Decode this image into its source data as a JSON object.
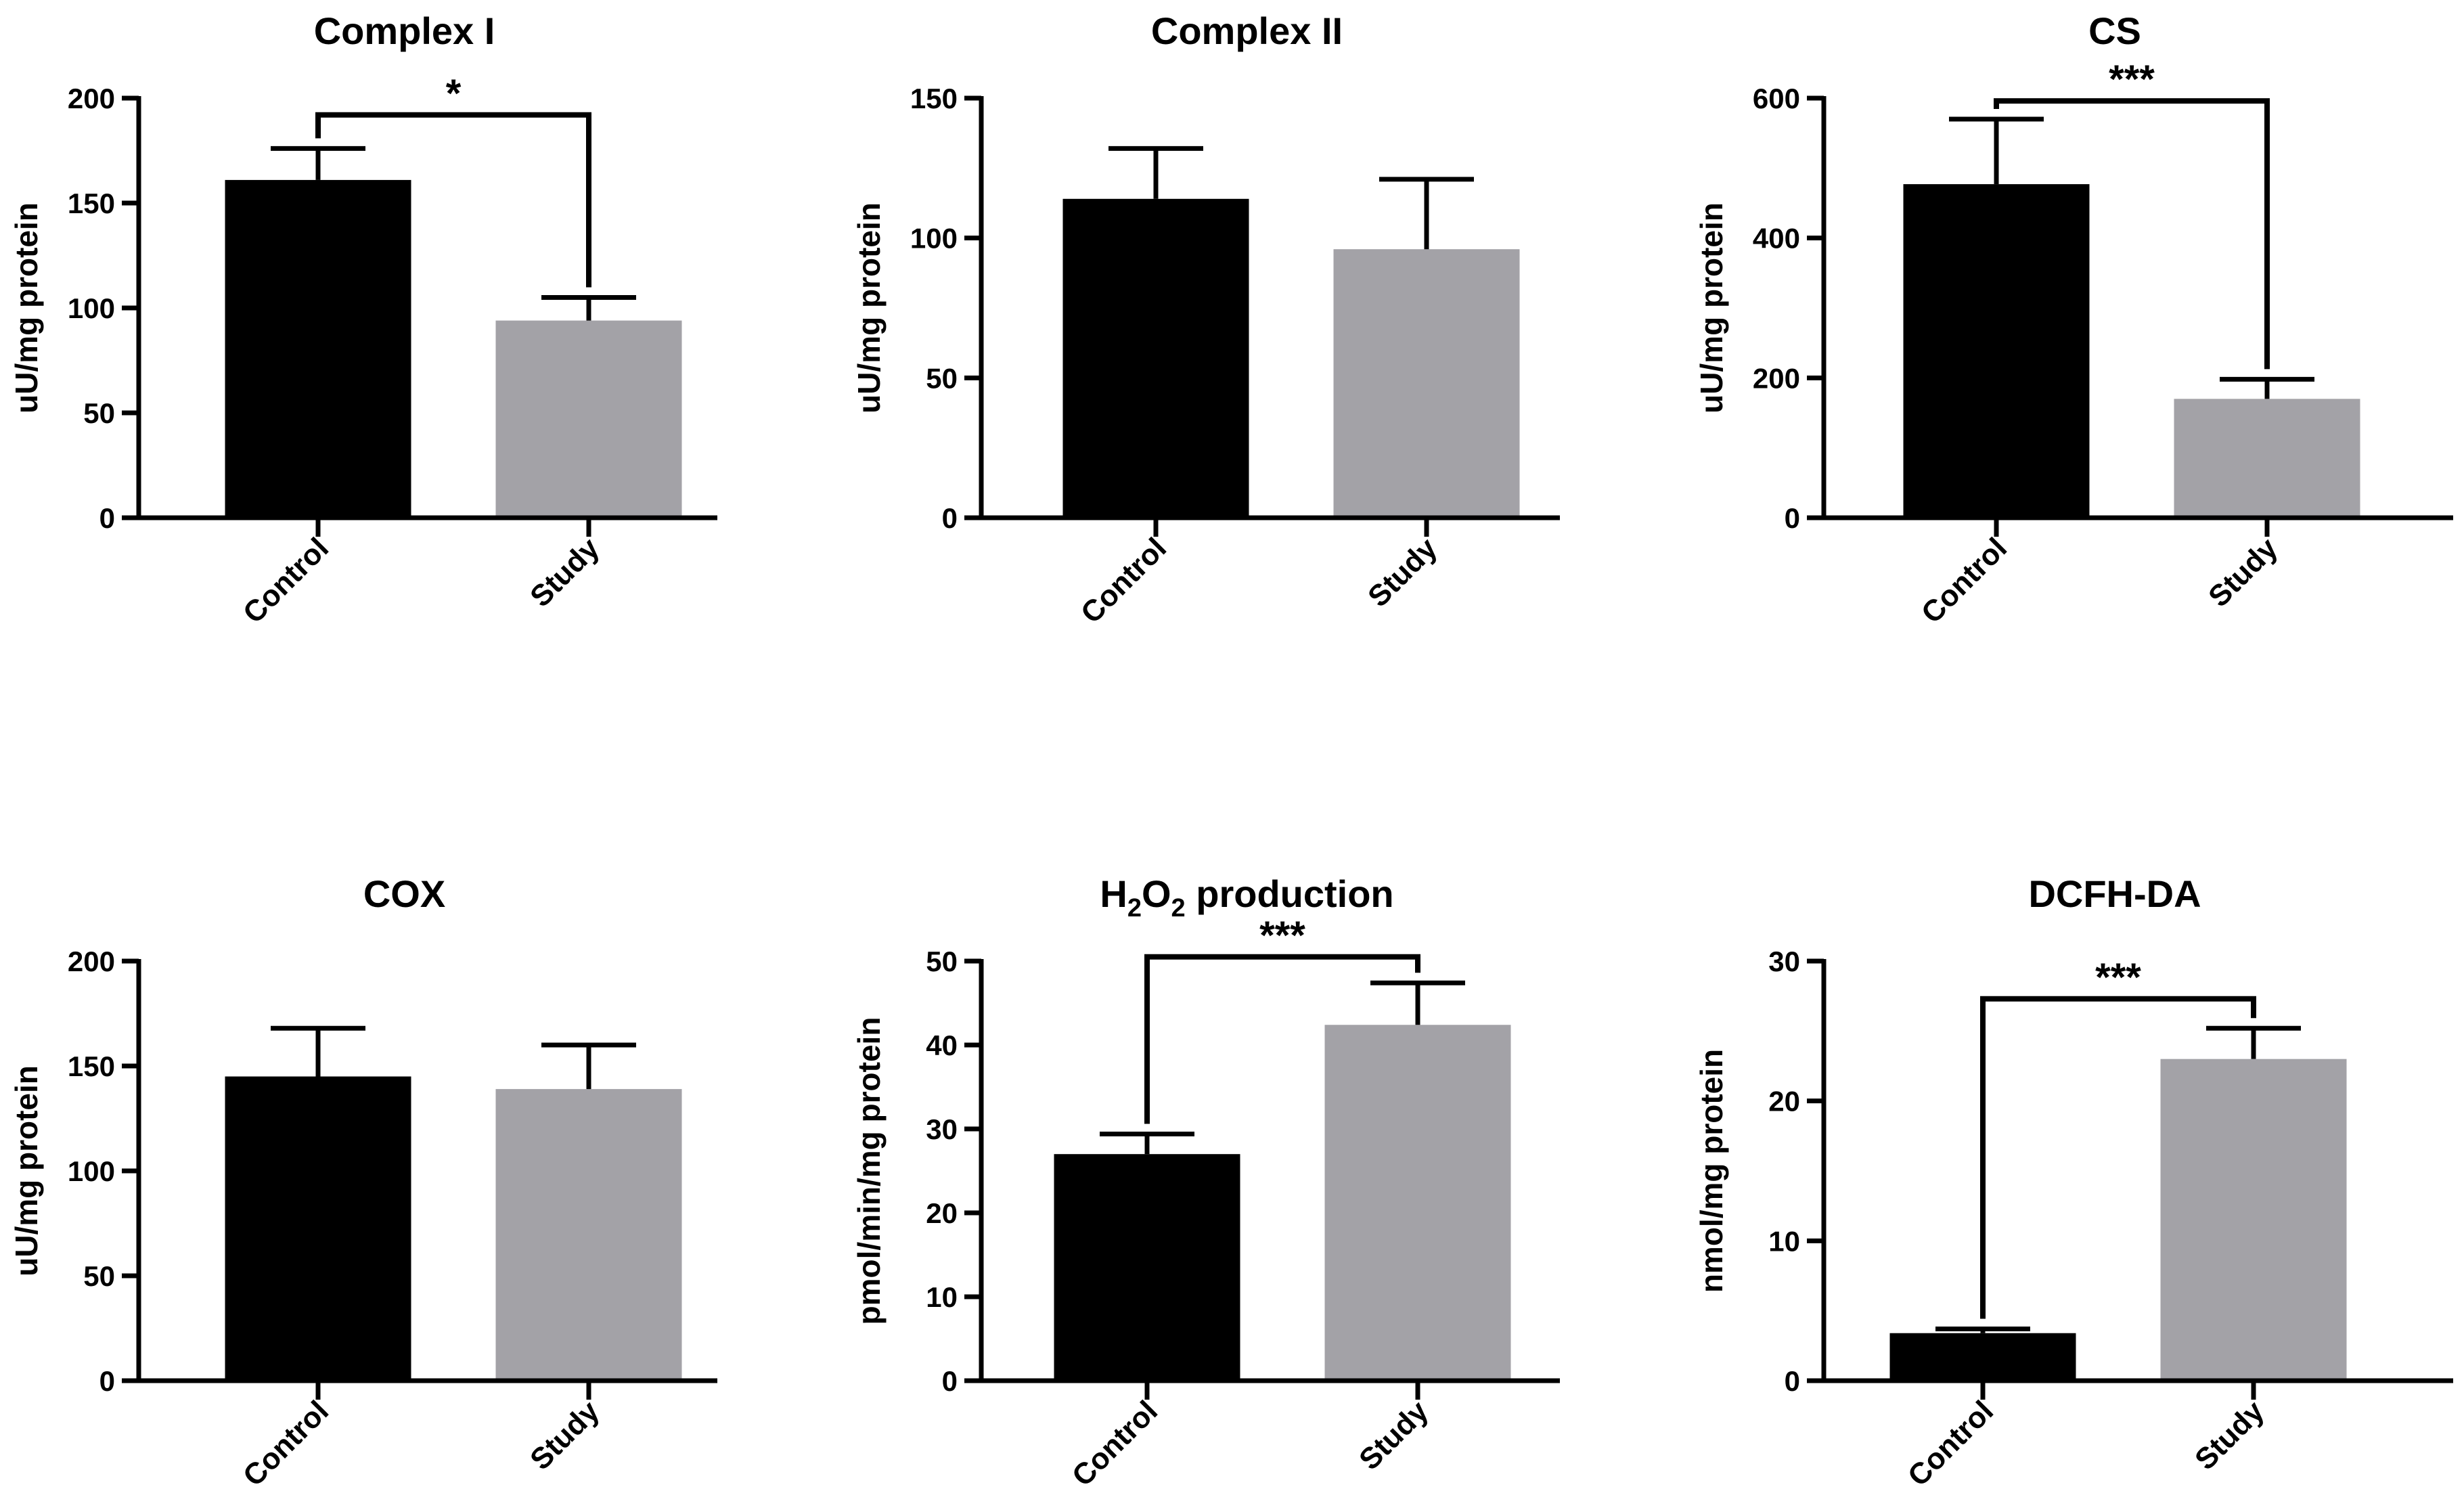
{
  "chart_data": [
    {
      "type": "bar",
      "title": "Complex I",
      "ylabel": "uU/mg protein",
      "xlabel": "",
      "categories": [
        "Control",
        "Study"
      ],
      "values": [
        161,
        94
      ],
      "errors": [
        15,
        11
      ],
      "ylim": [
        0,
        200
      ],
      "yticks": [
        0,
        50,
        100,
        150,
        200
      ],
      "colors": [
        "#000000",
        "#a3a2a7"
      ],
      "significance": {
        "label": "*",
        "from": 0,
        "to": 1,
        "y": 192
      }
    },
    {
      "type": "bar",
      "title": "Complex II",
      "ylabel": "uU/mg protein",
      "xlabel": "",
      "categories": [
        "Control",
        "Study"
      ],
      "values": [
        114,
        96
      ],
      "errors": [
        18,
        25
      ],
      "ylim": [
        0,
        150
      ],
      "yticks": [
        0,
        50,
        100,
        150
      ],
      "colors": [
        "#000000",
        "#a3a2a7"
      ],
      "significance": null
    },
    {
      "type": "bar",
      "title": "CS",
      "ylabel": "uU/mg protein",
      "xlabel": "",
      "categories": [
        "Control",
        "Study"
      ],
      "values": [
        477,
        170
      ],
      "errors": [
        93,
        28
      ],
      "ylim": [
        0,
        600
      ],
      "yticks": [
        0,
        200,
        400,
        600
      ],
      "colors": [
        "#000000",
        "#a3a2a7"
      ],
      "significance": {
        "label": "***",
        "from": 0,
        "to": 1,
        "y": 596
      }
    },
    {
      "type": "bar",
      "title": "COX",
      "ylabel": "uU/mg protein",
      "xlabel": "",
      "categories": [
        "Control",
        "Study"
      ],
      "values": [
        145,
        139
      ],
      "errors": [
        23,
        21
      ],
      "ylim": [
        0,
        200
      ],
      "yticks": [
        0,
        50,
        100,
        150,
        200
      ],
      "colors": [
        "#000000",
        "#a3a2a7"
      ],
      "significance": null
    },
    {
      "type": "bar",
      "title": "H2O2 production",
      "title_rich": [
        [
          "H",
          0
        ],
        [
          "2",
          -1
        ],
        [
          "O",
          0
        ],
        [
          "2",
          -1
        ],
        [
          " production",
          0
        ]
      ],
      "ylabel": "pmol/min/mg protein",
      "xlabel": "",
      "categories": [
        "Control",
        "Study"
      ],
      "values": [
        27,
        42.4
      ],
      "errors": [
        2.4,
        5
      ],
      "ylim": [
        0,
        50
      ],
      "yticks": [
        0,
        10,
        20,
        30,
        40,
        50
      ],
      "colors": [
        "#000000",
        "#a3a2a7"
      ],
      "significance": {
        "label": "***",
        "from": 0,
        "to": 1,
        "y": 50.5
      }
    },
    {
      "type": "bar",
      "title": "DCFH-DA",
      "ylabel": "nmol/mg protein",
      "xlabel": "",
      "categories": [
        "Control",
        "Study"
      ],
      "values": [
        3.4,
        23
      ],
      "errors": [
        0.3,
        2.2
      ],
      "ylim": [
        0,
        30
      ],
      "yticks": [
        0,
        10,
        20,
        30
      ],
      "colors": [
        "#000000",
        "#a3a2a7"
      ],
      "significance": {
        "label": "***",
        "from": 0,
        "to": 1,
        "y": 27.3
      }
    }
  ]
}
